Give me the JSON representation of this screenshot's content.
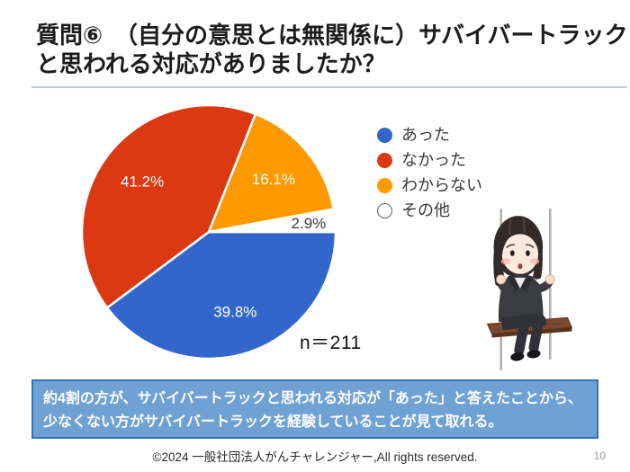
{
  "slide": {
    "title_lines": [
      "質問⑥　（自分の意思とは無関係に）サバイバートラック",
      "と思われる対応がありましたか？"
    ],
    "accent_line_color": "#b7cde0"
  },
  "chart_data": {
    "type": "pie",
    "categories": [
      "あった",
      "なかった",
      "わからない",
      "その他"
    ],
    "values": [
      39.8,
      41.2,
      16.1,
      2.9
    ],
    "value_labels": [
      "39.8%",
      "41.2%",
      "16.1%",
      "2.9%"
    ],
    "unit": "%",
    "colors": [
      "#3366CC",
      "#DC3912",
      "#FF9900",
      "#FFFFFF"
    ],
    "slice_label_colors": [
      "#FFFFFF",
      "#FFFFFF",
      "#FFFFFF",
      "#3d3d3d"
    ],
    "start_angle": "east",
    "direction": "clockwise",
    "legend_position": "right",
    "sample_size": "n＝211"
  },
  "note_box": {
    "text": "約4割の方が、サバイバートラックと思われる対応が「あった」と答えたことから、少なくない方がサバイバートラックを経験していることが見て取れる。",
    "background": "#6FA1D5",
    "border": "#2E75B6"
  },
  "footer": {
    "copyright": "©2024 一般社団法人がんチャレンジャー,All rights reserved.",
    "page_number": "10"
  },
  "illustration": {
    "description": "sad person in dark suit sitting on a swing"
  }
}
